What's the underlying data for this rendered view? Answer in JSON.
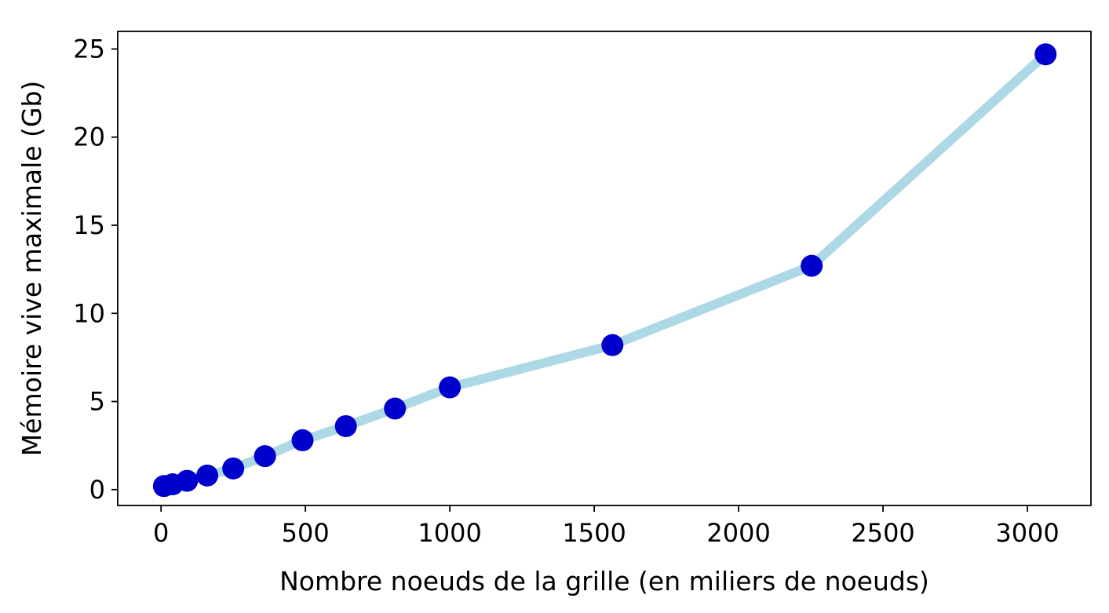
{
  "chart_data": {
    "type": "line",
    "title": "",
    "xlabel": "Nombre noeuds de la grille (en miliers de noeuds)",
    "ylabel": "Mémoire vive maximale (Gb)",
    "xlim": [
      -150,
      3220
    ],
    "ylim": [
      -0.9,
      26
    ],
    "xticks": [
      0,
      500,
      1000,
      1500,
      2000,
      2500,
      3000
    ],
    "yticks": [
      0,
      5,
      10,
      15,
      20,
      25
    ],
    "xtick_labels": [
      "0",
      "500",
      "1000",
      "1500",
      "2000",
      "2500",
      "3000"
    ],
    "ytick_labels": [
      "0",
      "5",
      "10",
      "15",
      "20",
      "25"
    ],
    "grid": false,
    "legend": false,
    "line_color": "#add8e6",
    "marker_color": "#0000cd",
    "series": [
      {
        "x": [
          10,
          40,
          90,
          160,
          250,
          360,
          490,
          640,
          810,
          1000,
          1563,
          2253,
          3063
        ],
        "y": [
          0.2,
          0.3,
          0.5,
          0.8,
          1.2,
          1.9,
          2.8,
          3.6,
          4.6,
          5.8,
          8.2,
          12.7,
          24.7
        ]
      }
    ]
  }
}
